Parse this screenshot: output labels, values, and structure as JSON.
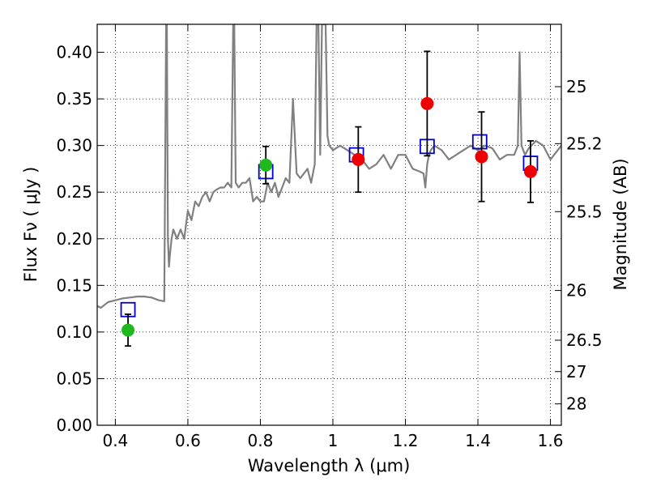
{
  "chart_data": {
    "type": "scatter",
    "xlabel": "Wavelength  λ (μm)",
    "ylabel": "Flux  Fν  ( μJy )",
    "y2label": "Magnitude (AB)",
    "xlim": [
      0.35,
      1.63
    ],
    "ylim": [
      0.0,
      0.43
    ],
    "x_ticks": [
      0.4,
      0.6,
      0.8,
      1.0,
      1.2,
      1.4,
      1.6
    ],
    "x_tick_labels": [
      "0.4",
      "0.6",
      "0.8",
      "1",
      "1.2",
      "1.4",
      "1.6"
    ],
    "y_ticks": [
      0.0,
      0.05,
      0.1,
      0.15,
      0.2,
      0.25,
      0.3,
      0.35,
      0.4
    ],
    "y_tick_labels": [
      "0.00",
      "0.05",
      "0.10",
      "0.15",
      "0.20",
      "0.25",
      "0.30",
      "0.35",
      "0.40"
    ],
    "y2_ticks": [
      25,
      25.2,
      25.5,
      26,
      26.5,
      27,
      28
    ],
    "y2_tick_labels": [
      "25",
      "25.2",
      "25.5",
      "26",
      "26.5",
      "27",
      "28"
    ],
    "grid": true,
    "colors": {
      "model": "#808080",
      "model_bands": "#0000cc",
      "observed_green": "#1fb81f",
      "observed_red": "#ee0000",
      "errorbar": "#000000"
    },
    "model_spectrum": {
      "x": [
        0.35,
        0.36,
        0.38,
        0.4,
        0.42,
        0.44,
        0.46,
        0.48,
        0.5,
        0.52,
        0.535,
        0.54,
        0.542,
        0.545,
        0.548,
        0.55,
        0.555,
        0.56,
        0.57,
        0.58,
        0.59,
        0.6,
        0.61,
        0.62,
        0.63,
        0.64,
        0.65,
        0.66,
        0.67,
        0.68,
        0.69,
        0.7,
        0.71,
        0.72,
        0.725,
        0.728,
        0.732,
        0.74,
        0.75,
        0.76,
        0.77,
        0.78,
        0.79,
        0.8,
        0.81,
        0.82,
        0.83,
        0.84,
        0.85,
        0.86,
        0.87,
        0.88,
        0.89,
        0.9,
        0.91,
        0.92,
        0.93,
        0.94,
        0.95,
        0.955,
        0.96,
        0.965,
        0.97,
        0.975,
        0.98,
        0.985,
        0.99,
        1.0,
        1.02,
        1.04,
        1.06,
        1.08,
        1.1,
        1.12,
        1.14,
        1.16,
        1.18,
        1.2,
        1.22,
        1.24,
        1.25,
        1.255,
        1.26,
        1.265,
        1.27,
        1.28,
        1.3,
        1.32,
        1.34,
        1.36,
        1.38,
        1.4,
        1.42,
        1.44,
        1.46,
        1.48,
        1.5,
        1.51,
        1.515,
        1.52,
        1.53,
        1.54,
        1.56,
        1.58,
        1.6,
        1.63
      ],
      "y": [
        0.128,
        0.126,
        0.132,
        0.134,
        0.136,
        0.137,
        0.138,
        0.138,
        0.137,
        0.134,
        0.133,
        0.43,
        0.43,
        0.2,
        0.17,
        0.18,
        0.2,
        0.21,
        0.2,
        0.21,
        0.2,
        0.23,
        0.22,
        0.24,
        0.235,
        0.245,
        0.25,
        0.24,
        0.25,
        0.253,
        0.255,
        0.255,
        0.26,
        0.255,
        0.43,
        0.43,
        0.26,
        0.255,
        0.26,
        0.26,
        0.265,
        0.24,
        0.245,
        0.24,
        0.24,
        0.26,
        0.25,
        0.26,
        0.245,
        0.255,
        0.265,
        0.26,
        0.35,
        0.27,
        0.265,
        0.27,
        0.275,
        0.26,
        0.28,
        0.43,
        0.43,
        0.29,
        0.43,
        0.43,
        0.43,
        0.31,
        0.3,
        0.295,
        0.3,
        0.295,
        0.29,
        0.285,
        0.275,
        0.28,
        0.29,
        0.275,
        0.29,
        0.29,
        0.275,
        0.272,
        0.27,
        0.255,
        0.28,
        0.29,
        0.295,
        0.3,
        0.295,
        0.285,
        0.29,
        0.295,
        0.3,
        0.295,
        0.3,
        0.297,
        0.285,
        0.29,
        0.29,
        0.3,
        0.4,
        0.3,
        0.29,
        0.297,
        0.305,
        0.3,
        0.285,
        0.3
      ]
    },
    "model_band_flux": {
      "x": [
        0.435,
        0.815,
        1.065,
        1.26,
        1.405,
        1.545
      ],
      "y": [
        0.124,
        0.272,
        0.29,
        0.299,
        0.304,
        0.281
      ]
    },
    "observed": [
      {
        "x": 0.435,
        "y": 0.102,
        "err": 0.017,
        "color": "green"
      },
      {
        "x": 0.815,
        "y": 0.279,
        "err": 0.02,
        "color": "green"
      },
      {
        "x": 1.07,
        "y": 0.285,
        "err": 0.035,
        "color": "red"
      },
      {
        "x": 1.26,
        "y": 0.345,
        "err": 0.056,
        "color": "red"
      },
      {
        "x": 1.41,
        "y": 0.288,
        "err": 0.048,
        "color": "red"
      },
      {
        "x": 1.545,
        "y": 0.272,
        "err": 0.033,
        "color": "red"
      }
    ]
  }
}
